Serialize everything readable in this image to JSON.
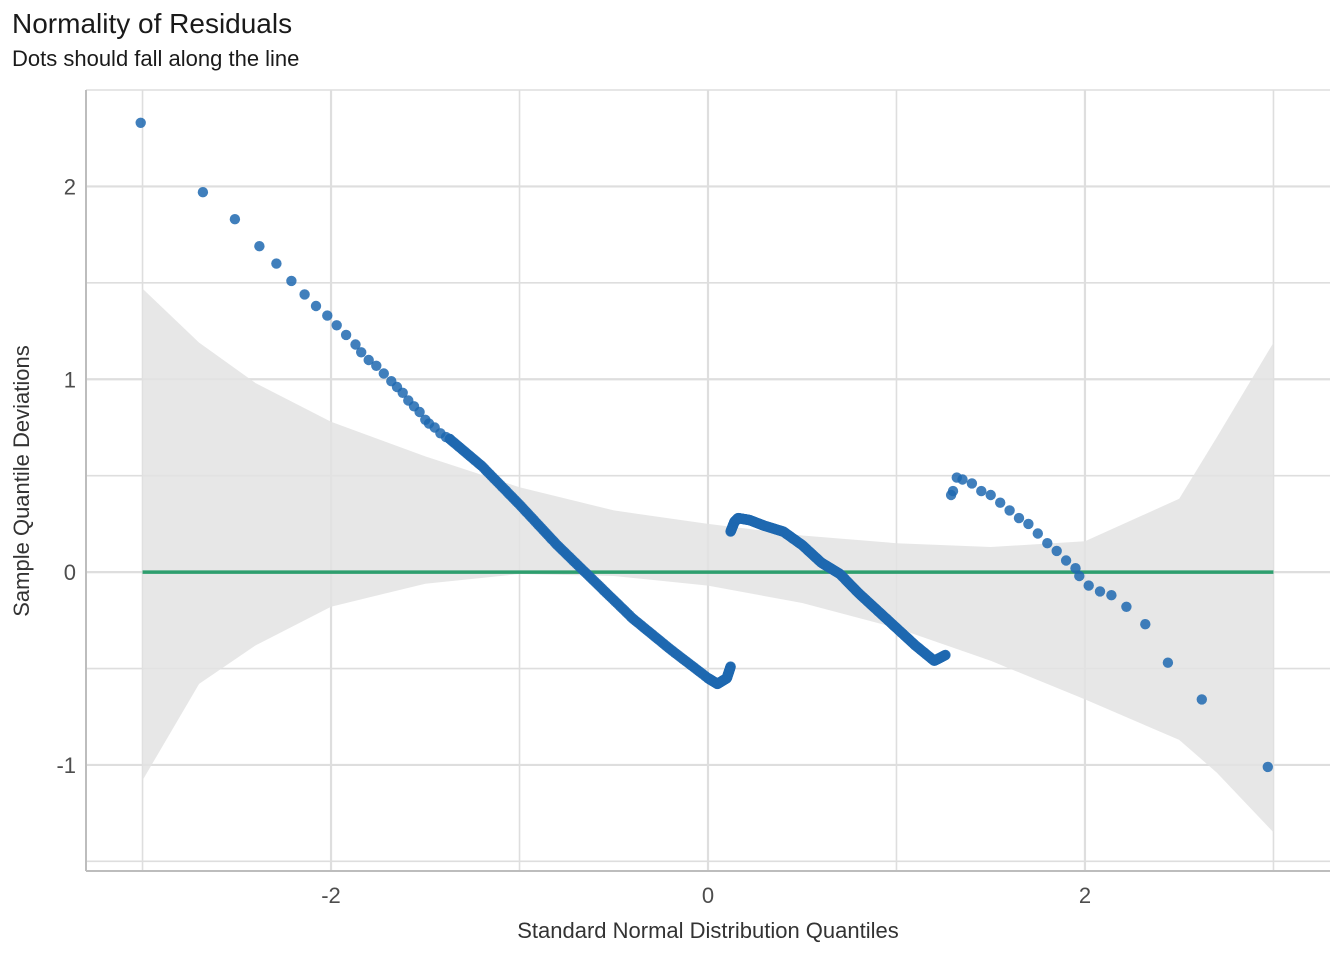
{
  "chart_data": {
    "type": "scatter",
    "title": "Normality of Residuals",
    "subtitle": "Dots should fall along the line",
    "xlabel": "Standard Normal Distribution Quantiles",
    "ylabel": "Sample Quantile Deviations",
    "xlim": [
      -3.3,
      3.3
    ],
    "ylim": [
      -1.55,
      2.5
    ],
    "x_ticks": [
      -2,
      0,
      2
    ],
    "x_tick_labels": [
      "-2",
      "0",
      "2"
    ],
    "y_ticks": [
      -1,
      0,
      1,
      2
    ],
    "y_tick_labels": [
      "-1",
      "0",
      "1",
      "2"
    ],
    "grid": true,
    "colors": {
      "points": "#1f68b0",
      "reference_line": "#2e9e6e",
      "confidence_band": "#e3e3e3",
      "grid": "#dedede"
    },
    "reference_line": {
      "y": 0
    },
    "confidence_band": {
      "x": [
        -3.0,
        -2.7,
        -2.4,
        -2.0,
        -1.5,
        -1.0,
        -0.5,
        0.0,
        0.5,
        1.0,
        1.5,
        2.0,
        2.5,
        2.7,
        3.0
      ],
      "upper": [
        1.47,
        1.19,
        0.98,
        0.78,
        0.6,
        0.44,
        0.32,
        0.25,
        0.19,
        0.15,
        0.13,
        0.16,
        0.38,
        0.7,
        1.19
      ],
      "lower": [
        -1.08,
        -0.58,
        -0.38,
        -0.18,
        -0.06,
        -0.01,
        -0.02,
        -0.07,
        -0.16,
        -0.29,
        -0.46,
        -0.66,
        -0.87,
        -1.04,
        -1.35
      ]
    },
    "tail_points": {
      "x": [
        -3.01,
        -2.68,
        -2.51,
        -2.38,
        -2.29,
        -2.21,
        -2.14,
        -2.08,
        -2.02,
        -1.97,
        -1.92,
        -1.87,
        -1.84,
        -1.8,
        -1.76,
        -1.72,
        -1.68,
        -1.65,
        -1.62,
        -1.59,
        -1.56,
        -1.53,
        -1.5,
        -1.48,
        -1.45,
        -1.42,
        -1.39,
        -1.37,
        1.29,
        1.3,
        1.32,
        1.35,
        1.4,
        1.45,
        1.5,
        1.55,
        1.6,
        1.65,
        1.7,
        1.75,
        1.8,
        1.85,
        1.9,
        1.95,
        1.97,
        2.02,
        2.08,
        2.14,
        2.22,
        2.32,
        2.44,
        2.62,
        2.97
      ],
      "y": [
        2.33,
        1.97,
        1.83,
        1.69,
        1.6,
        1.51,
        1.44,
        1.38,
        1.33,
        1.28,
        1.23,
        1.18,
        1.14,
        1.1,
        1.07,
        1.03,
        0.99,
        0.96,
        0.93,
        0.89,
        0.86,
        0.83,
        0.79,
        0.77,
        0.75,
        0.72,
        0.7,
        0.69,
        0.4,
        0.42,
        0.49,
        0.48,
        0.46,
        0.42,
        0.4,
        0.36,
        0.32,
        0.28,
        0.25,
        0.2,
        0.15,
        0.11,
        0.06,
        0.02,
        -0.02,
        -0.07,
        -0.1,
        -0.12,
        -0.18,
        -0.27,
        -0.47,
        -0.66,
        -1.01
      ]
    },
    "dense_segments": [
      {
        "x": [
          -1.37,
          -1.2,
          -1.0,
          -0.8,
          -0.6,
          -0.4,
          -0.2,
          0.0,
          0.05,
          0.1,
          0.12
        ],
        "y": [
          0.69,
          0.55,
          0.35,
          0.14,
          -0.05,
          -0.24,
          -0.4,
          -0.55,
          -0.58,
          -0.55,
          -0.49
        ]
      },
      {
        "x": [
          0.12,
          0.14,
          0.16,
          0.22,
          0.3,
          0.4,
          0.5,
          0.6,
          0.7,
          0.8,
          0.9,
          1.0,
          1.1,
          1.2,
          1.26
        ],
        "y": [
          0.21,
          0.26,
          0.28,
          0.27,
          0.24,
          0.21,
          0.14,
          0.05,
          -0.01,
          -0.11,
          -0.2,
          -0.29,
          -0.38,
          -0.46,
          -0.43
        ]
      }
    ]
  }
}
